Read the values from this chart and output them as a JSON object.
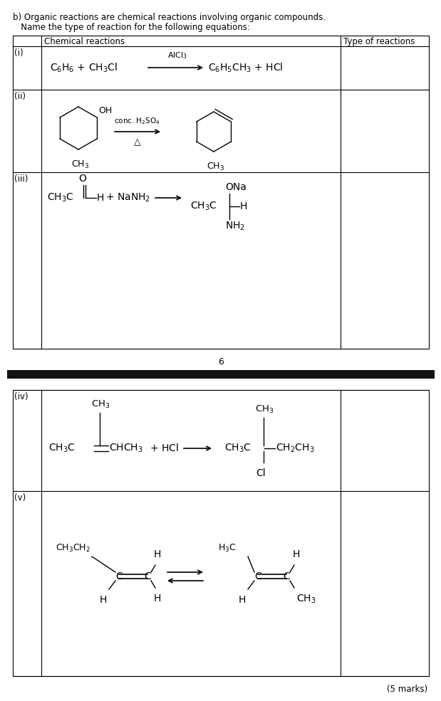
{
  "bg_color": "#ffffff",
  "text_color": "#000000",
  "title_line1": "b) Organic reactions are chemical reactions involving organic compounds.",
  "title_line2": "   Name the type of reaction for the following equations:",
  "col_header1": "Chemical reactions",
  "col_header2": "Type of reactions",
  "row_labels": [
    "(i)",
    "(ii)",
    "(iii)",
    "(iv)",
    "(v)"
  ],
  "page_number": "6",
  "marks_note": "(5 marks)"
}
